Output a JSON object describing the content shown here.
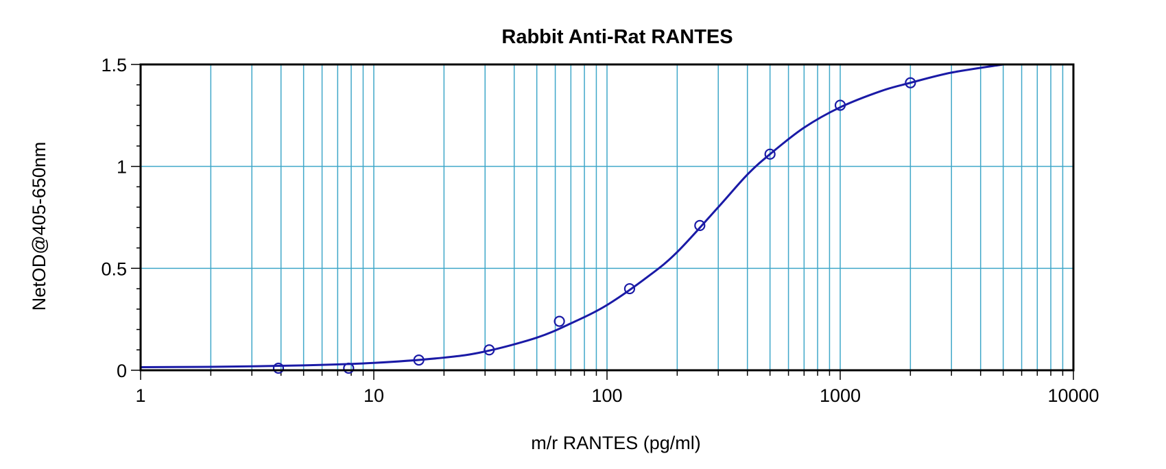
{
  "chart_data": {
    "type": "scatter",
    "title": "Rabbit Anti-Rat RANTES",
    "xlabel": "m/r RANTES (pg/ml)",
    "ylabel": "NetOD@405-650nm",
    "x_scale": "log",
    "xlim": [
      1,
      10000
    ],
    "ylim": [
      0,
      1.5
    ],
    "x_ticks": [
      1,
      10,
      100,
      1000,
      10000
    ],
    "x_tick_labels": [
      "1",
      "10",
      "100",
      "1000",
      "10000"
    ],
    "y_ticks": [
      0,
      0.5,
      1,
      1.5
    ],
    "y_tick_labels": [
      "0",
      "0.5",
      "1",
      "1.5"
    ],
    "grid": true,
    "legend": "none",
    "colors": {
      "grid": "#3fa7c9",
      "series": "#1a1aa6",
      "axis": "#000000"
    },
    "points": {
      "x": [
        3.9,
        7.8,
        15.6,
        31.25,
        62.5,
        125,
        250,
        500,
        1000,
        2000
      ],
      "y": [
        0.01,
        0.01,
        0.05,
        0.1,
        0.24,
        0.4,
        0.71,
        1.06,
        1.3,
        1.41
      ]
    },
    "fit_curve": {
      "x": [
        1,
        2,
        5,
        10,
        20,
        30,
        50,
        70,
        100,
        150,
        200,
        300,
        400,
        500,
        700,
        1000,
        1500,
        2000,
        3000,
        5000
      ],
      "y": [
        0.015,
        0.017,
        0.024,
        0.036,
        0.062,
        0.092,
        0.16,
        0.23,
        0.32,
        0.46,
        0.58,
        0.8,
        0.96,
        1.06,
        1.19,
        1.29,
        1.37,
        1.41,
        1.46,
        1.5
      ]
    }
  }
}
